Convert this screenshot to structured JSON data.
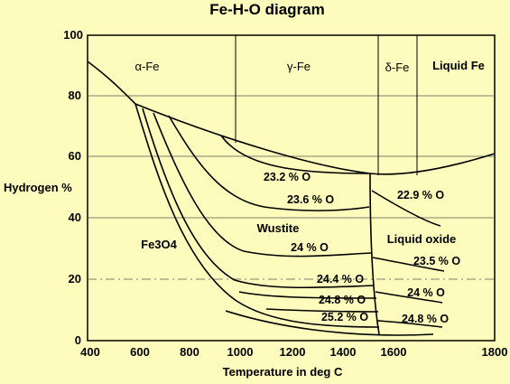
{
  "title": "Fe-H-O diagram",
  "x_axis": {
    "label": "Temperature in deg C",
    "ticks": [
      "400",
      "600",
      "800",
      "1000",
      "1200",
      "1400",
      "1600",
      "1800"
    ]
  },
  "y_axis": {
    "label": "Hydrogen %",
    "ticks": [
      "0",
      "20",
      "40",
      "60",
      "80",
      "100"
    ]
  },
  "phase_labels": {
    "alpha_fe": "α-Fe",
    "gamma_fe": "γ-Fe",
    "delta_fe": "δ-Fe",
    "liquid_fe": "Liquid Fe",
    "fe3o4": "Fe3O4",
    "wustite": "Wustite",
    "liquid_oxide": "Liquid oxide"
  },
  "oxygen_labels": {
    "o_23_2": "23.2 % O",
    "o_23_6": "23.6 % O",
    "o_24_0": "24 % O",
    "o_24_4": "24.4 % O",
    "o_24_8_solid": "24.8 % O",
    "o_25_2": "25.2 % O",
    "o_22_9": "22.9 % O",
    "o_23_5": "23.5 % O",
    "o_24_liquid": "24 % O",
    "o_24_8_liquid": "24.8 % O"
  },
  "colors": {
    "background": "#fdfcbc",
    "ink": "#000000",
    "grid": "#555555"
  }
}
